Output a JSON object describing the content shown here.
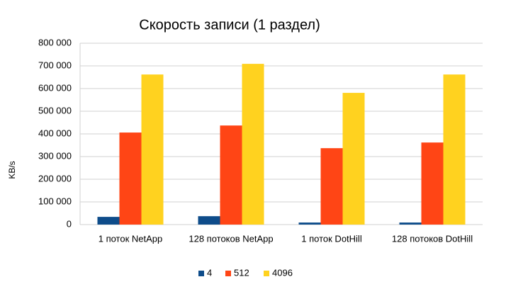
{
  "chart_data": {
    "type": "bar",
    "title": "Скорость записи (1 раздел)",
    "y_label": "KB/s",
    "categories": [
      "1 поток NetApp",
      "128 потоков NetApp",
      "1 поток DotHill",
      "128 потоков DotHill"
    ],
    "series": [
      {
        "name": "4",
        "color": "#0e4c8a",
        "values": [
          34000,
          37000,
          9000,
          9000
        ]
      },
      {
        "name": "512",
        "color": "#ff4515",
        "values": [
          406000,
          437000,
          337000,
          362000
        ]
      },
      {
        "name": "4096",
        "color": "#ffd21f",
        "values": [
          662000,
          709000,
          581000,
          662000
        ]
      }
    ],
    "ylim": [
      0,
      800000
    ],
    "yticks": [
      0,
      {
        "value": 100000,
        "label": "100 000"
      },
      {
        "value": 200000,
        "label": "200 000"
      },
      {
        "value": 300000,
        "label": "300 000"
      },
      {
        "value": 400000,
        "label": "400 000"
      },
      {
        "value": 500000,
        "label": "500 000"
      },
      {
        "value": 600000,
        "label": "600 000"
      },
      {
        "value": 700000,
        "label": "700 000"
      },
      {
        "value": 800000,
        "label": "800 000"
      }
    ],
    "grid": true,
    "legend": "bottom"
  }
}
